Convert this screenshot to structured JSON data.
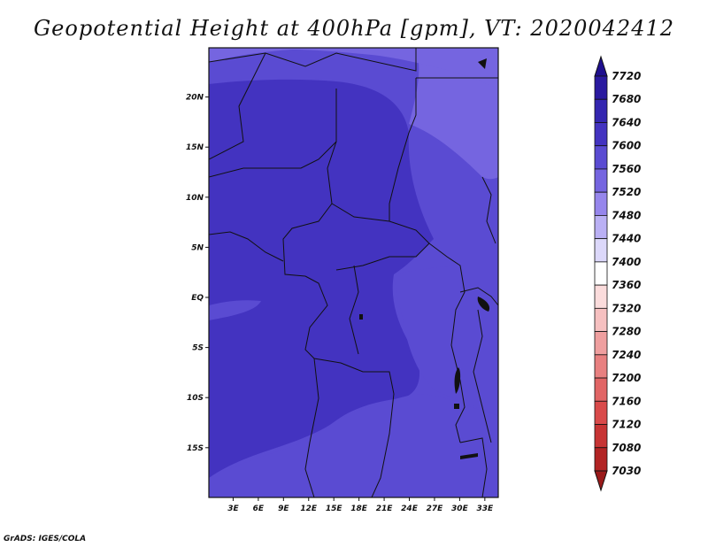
{
  "title": "Geopotential Height at 400hPa [gpm], VT: 2020042412",
  "credit": "GrADS: IGES/COLA",
  "map": {
    "lat_ticks": [
      {
        "lat": 20,
        "label": "20N"
      },
      {
        "lat": 15,
        "label": "15N"
      },
      {
        "lat": 10,
        "label": "10N"
      },
      {
        "lat": 5,
        "label": "5N"
      },
      {
        "lat": 0,
        "label": "EQ"
      },
      {
        "lat": -5,
        "label": "5S"
      },
      {
        "lat": -10,
        "label": "10S"
      },
      {
        "lat": -15,
        "label": "15S"
      }
    ],
    "lon_ticks": [
      {
        "lon": 3,
        "label": "3E"
      },
      {
        "lon": 6,
        "label": "6E"
      },
      {
        "lon": 9,
        "label": "9E"
      },
      {
        "lon": 12,
        "label": "12E"
      },
      {
        "lon": 15,
        "label": "15E"
      },
      {
        "lon": 18,
        "label": "18E"
      },
      {
        "lon": 21,
        "label": "21E"
      },
      {
        "lon": 24,
        "label": "24E"
      },
      {
        "lon": 27,
        "label": "27E"
      },
      {
        "lon": 30,
        "label": "30E"
      },
      {
        "lon": 33,
        "label": "33E"
      }
    ]
  },
  "colorbar": {
    "levels": [
      {
        "value": "7720",
        "color": "#1f0f8f"
      },
      {
        "value": "7680",
        "color": "#2a1aa0"
      },
      {
        "value": "7640",
        "color": "#3426b0"
      },
      {
        "value": "7600",
        "color": "#4333c0"
      },
      {
        "value": "7560",
        "color": "#5a4bd2"
      },
      {
        "value": "7520",
        "color": "#7565e0"
      },
      {
        "value": "7480",
        "color": "#9686ec"
      },
      {
        "value": "7440",
        "color": "#bab0f4"
      },
      {
        "value": "7400",
        "color": "#dcd8fa"
      },
      {
        "value": "7360",
        "color": "#ffffff"
      },
      {
        "value": "7320",
        "color": "#fbdcdc"
      },
      {
        "value": "7280",
        "color": "#f6c0c0"
      },
      {
        "value": "7240",
        "color": "#ef9f9f"
      },
      {
        "value": "7200",
        "color": "#e88080"
      },
      {
        "value": "7160",
        "color": "#e16565"
      },
      {
        "value": "7120",
        "color": "#d94a4a"
      },
      {
        "value": "7080",
        "color": "#c73434"
      },
      {
        "value": "7030",
        "color": "#b22424"
      },
      {
        "value": "",
        "color": "#9a1a1a"
      }
    ]
  }
}
